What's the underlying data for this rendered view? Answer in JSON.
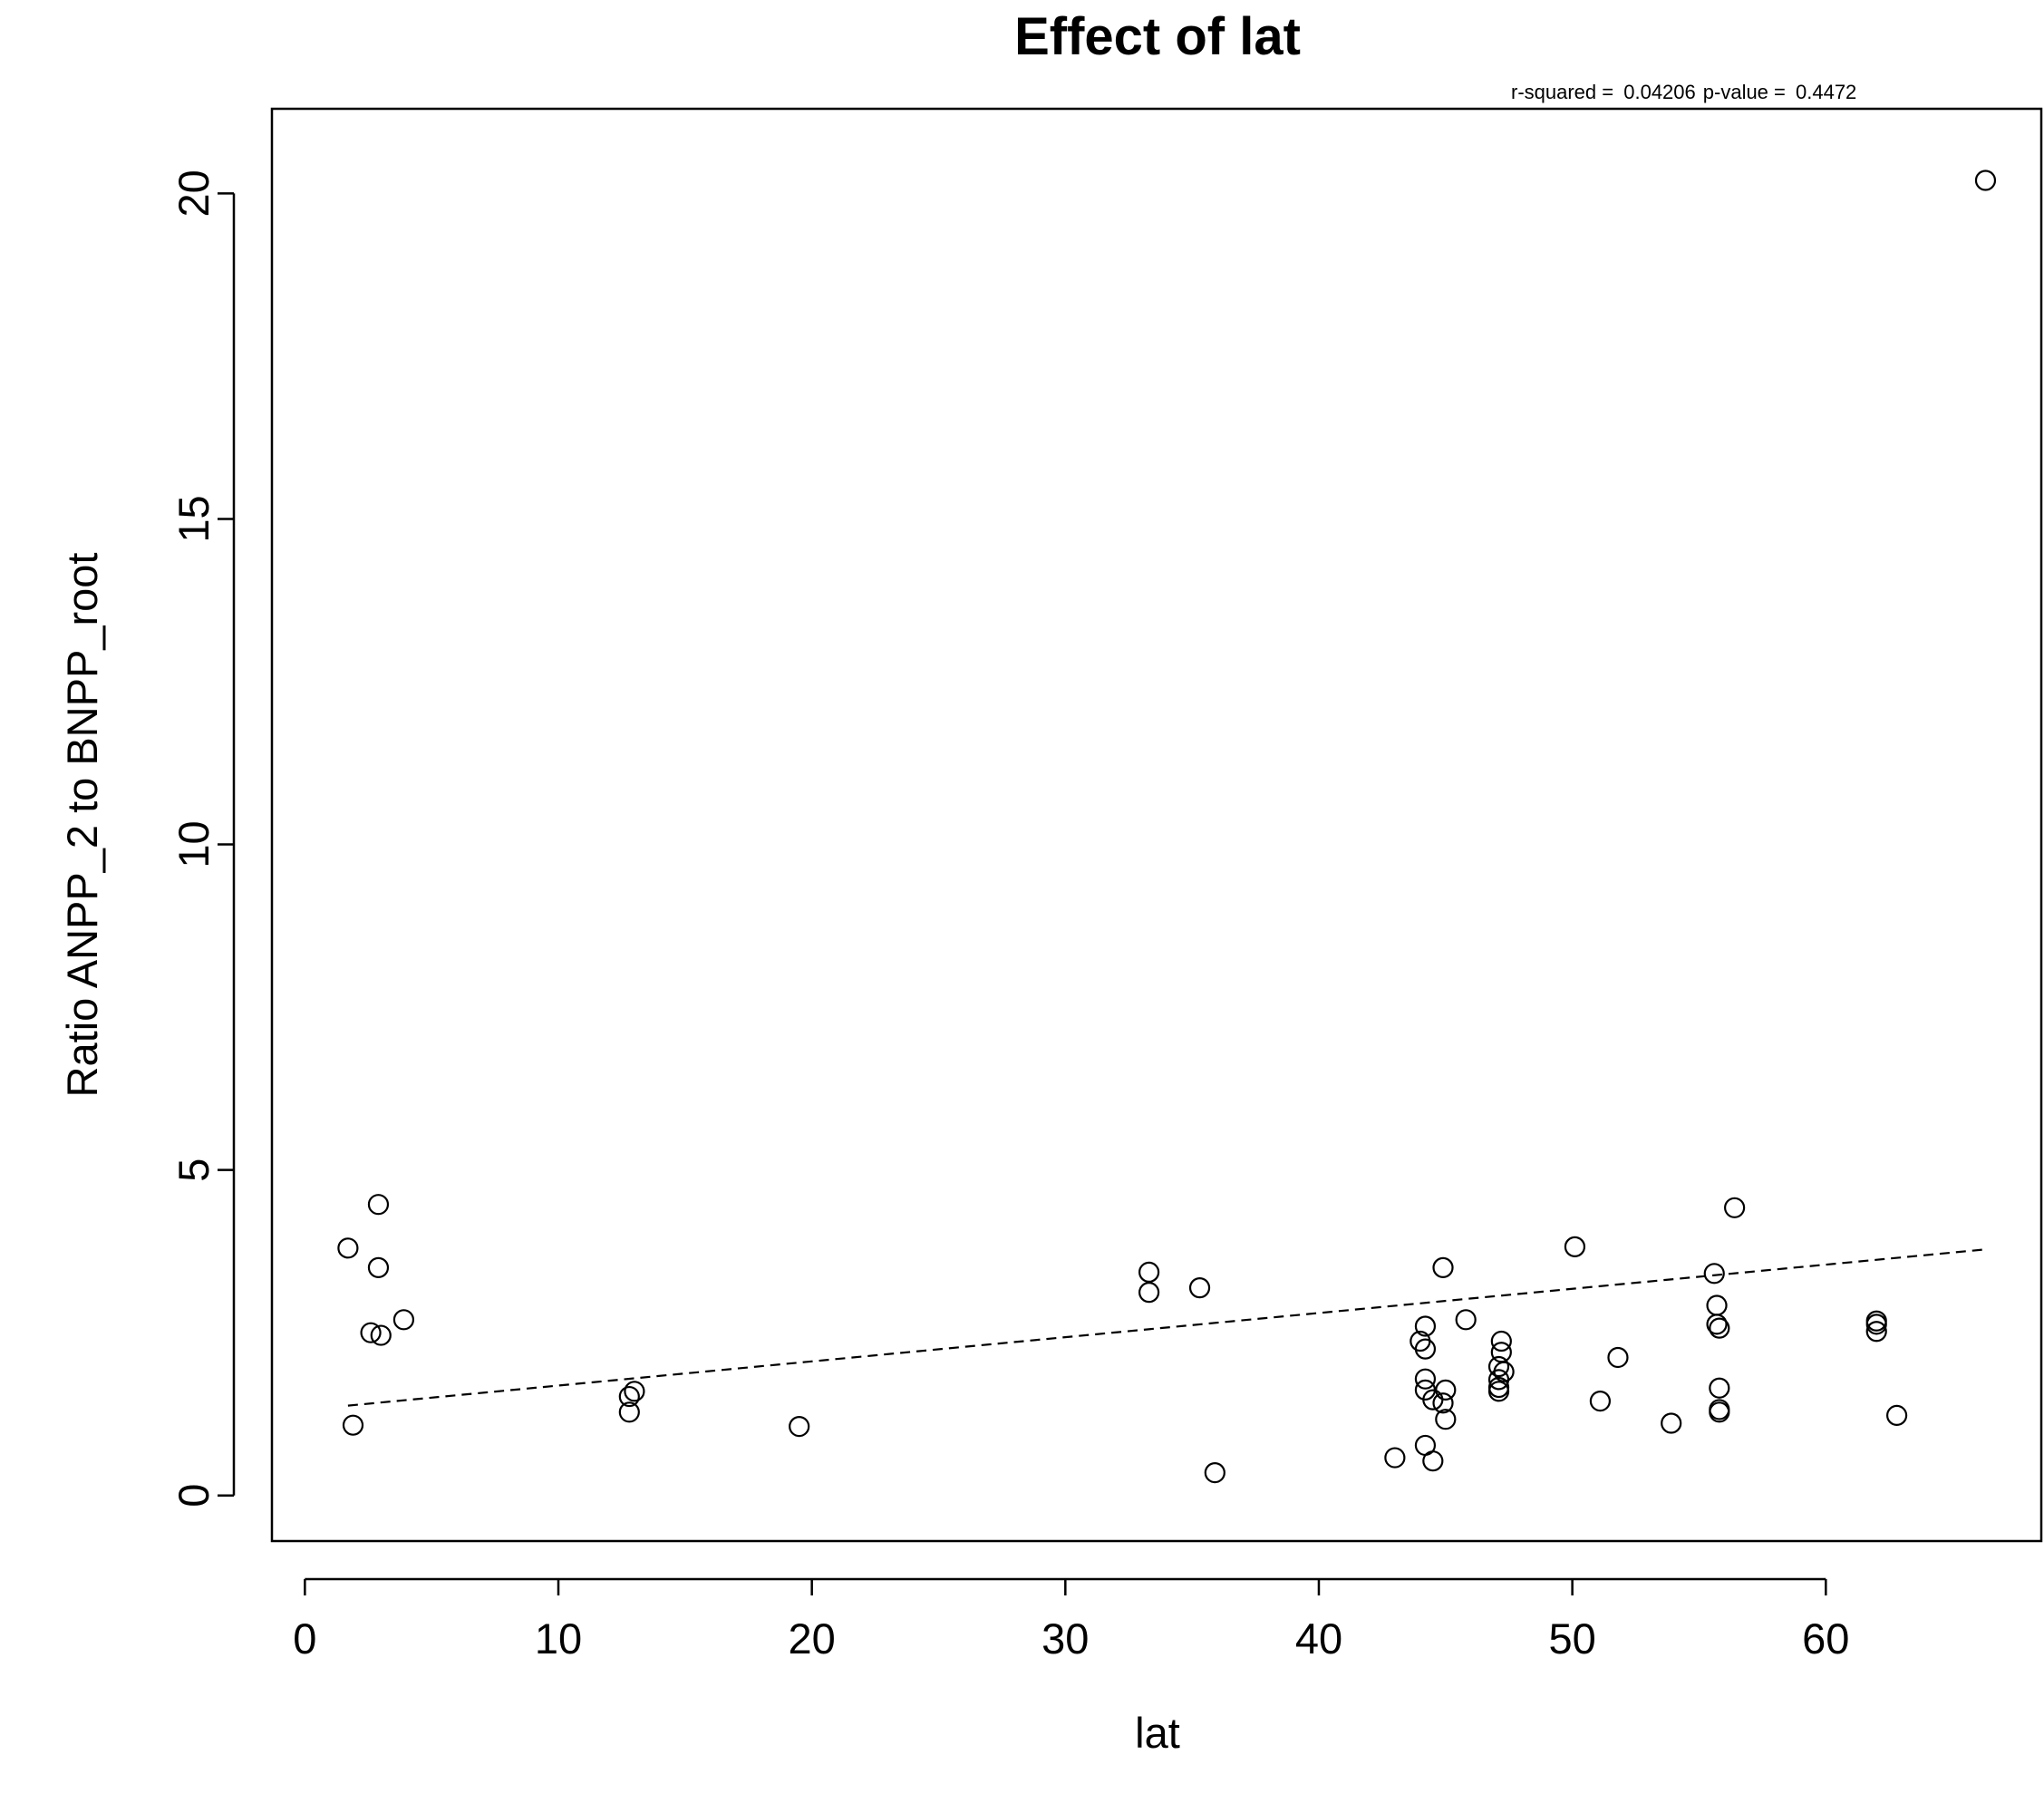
{
  "chart_data": {
    "type": "scatter",
    "title": "Effect of lat",
    "xlabel": "lat",
    "ylabel": "Ratio ANPP_2 to BNPP_root",
    "stats": {
      "r_squared_label": "r-squared = ",
      "r_squared": "0.04206",
      "p_value_label": "p-value = ",
      "p_value": "0.4472"
    },
    "xlim": [
      -1.3,
      68.5
    ],
    "ylim": [
      -0.7,
      21.3
    ],
    "x_ticks": [
      0,
      10,
      20,
      30,
      40,
      50,
      60
    ],
    "y_ticks": [
      0,
      5,
      10,
      15,
      20
    ],
    "grid": false,
    "legend": "none",
    "points": [
      {
        "x": 1.7,
        "y": 3.8
      },
      {
        "x": 1.9,
        "y": 1.08
      },
      {
        "x": 2.6,
        "y": 2.5
      },
      {
        "x": 2.9,
        "y": 4.47
      },
      {
        "x": 2.9,
        "y": 3.5
      },
      {
        "x": 3.0,
        "y": 2.46
      },
      {
        "x": 3.9,
        "y": 2.7
      },
      {
        "x": 12.8,
        "y": 1.28
      },
      {
        "x": 12.8,
        "y": 1.52
      },
      {
        "x": 13.0,
        "y": 1.6
      },
      {
        "x": 19.5,
        "y": 1.06
      },
      {
        "x": 33.3,
        "y": 3.43
      },
      {
        "x": 33.3,
        "y": 3.12
      },
      {
        "x": 35.3,
        "y": 3.19
      },
      {
        "x": 35.9,
        "y": 0.35
      },
      {
        "x": 43.0,
        "y": 0.58
      },
      {
        "x": 44.0,
        "y": 2.37
      },
      {
        "x": 44.2,
        "y": 2.6
      },
      {
        "x": 44.2,
        "y": 2.25
      },
      {
        "x": 44.2,
        "y": 1.79
      },
      {
        "x": 44.2,
        "y": 1.62
      },
      {
        "x": 44.2,
        "y": 0.77
      },
      {
        "x": 44.5,
        "y": 1.47
      },
      {
        "x": 44.5,
        "y": 0.53
      },
      {
        "x": 44.9,
        "y": 3.5
      },
      {
        "x": 45.0,
        "y": 1.62
      },
      {
        "x": 44.9,
        "y": 1.42
      },
      {
        "x": 45.0,
        "y": 1.17
      },
      {
        "x": 45.8,
        "y": 2.7
      },
      {
        "x": 47.1,
        "y": 1.98
      },
      {
        "x": 47.1,
        "y": 1.78
      },
      {
        "x": 47.1,
        "y": 1.66
      },
      {
        "x": 47.1,
        "y": 1.6
      },
      {
        "x": 47.2,
        "y": 2.37
      },
      {
        "x": 47.2,
        "y": 2.2
      },
      {
        "x": 47.3,
        "y": 1.9
      },
      {
        "x": 50.1,
        "y": 3.82
      },
      {
        "x": 51.1,
        "y": 1.45
      },
      {
        "x": 51.8,
        "y": 2.12
      },
      {
        "x": 53.9,
        "y": 1.11
      },
      {
        "x": 55.6,
        "y": 3.41
      },
      {
        "x": 55.7,
        "y": 2.92
      },
      {
        "x": 55.7,
        "y": 2.63
      },
      {
        "x": 55.8,
        "y": 2.57
      },
      {
        "x": 55.8,
        "y": 1.65
      },
      {
        "x": 55.8,
        "y": 1.32
      },
      {
        "x": 55.8,
        "y": 1.28
      },
      {
        "x": 56.4,
        "y": 4.42
      },
      {
        "x": 62.0,
        "y": 2.68
      },
      {
        "x": 62.0,
        "y": 2.63
      },
      {
        "x": 62.0,
        "y": 2.52
      },
      {
        "x": 62.8,
        "y": 1.23
      },
      {
        "x": 66.3,
        "y": 20.2
      }
    ],
    "regression_line": {
      "style": "dashed",
      "x": [
        1.7,
        66.3
      ],
      "y": [
        1.38,
        3.78
      ]
    }
  }
}
